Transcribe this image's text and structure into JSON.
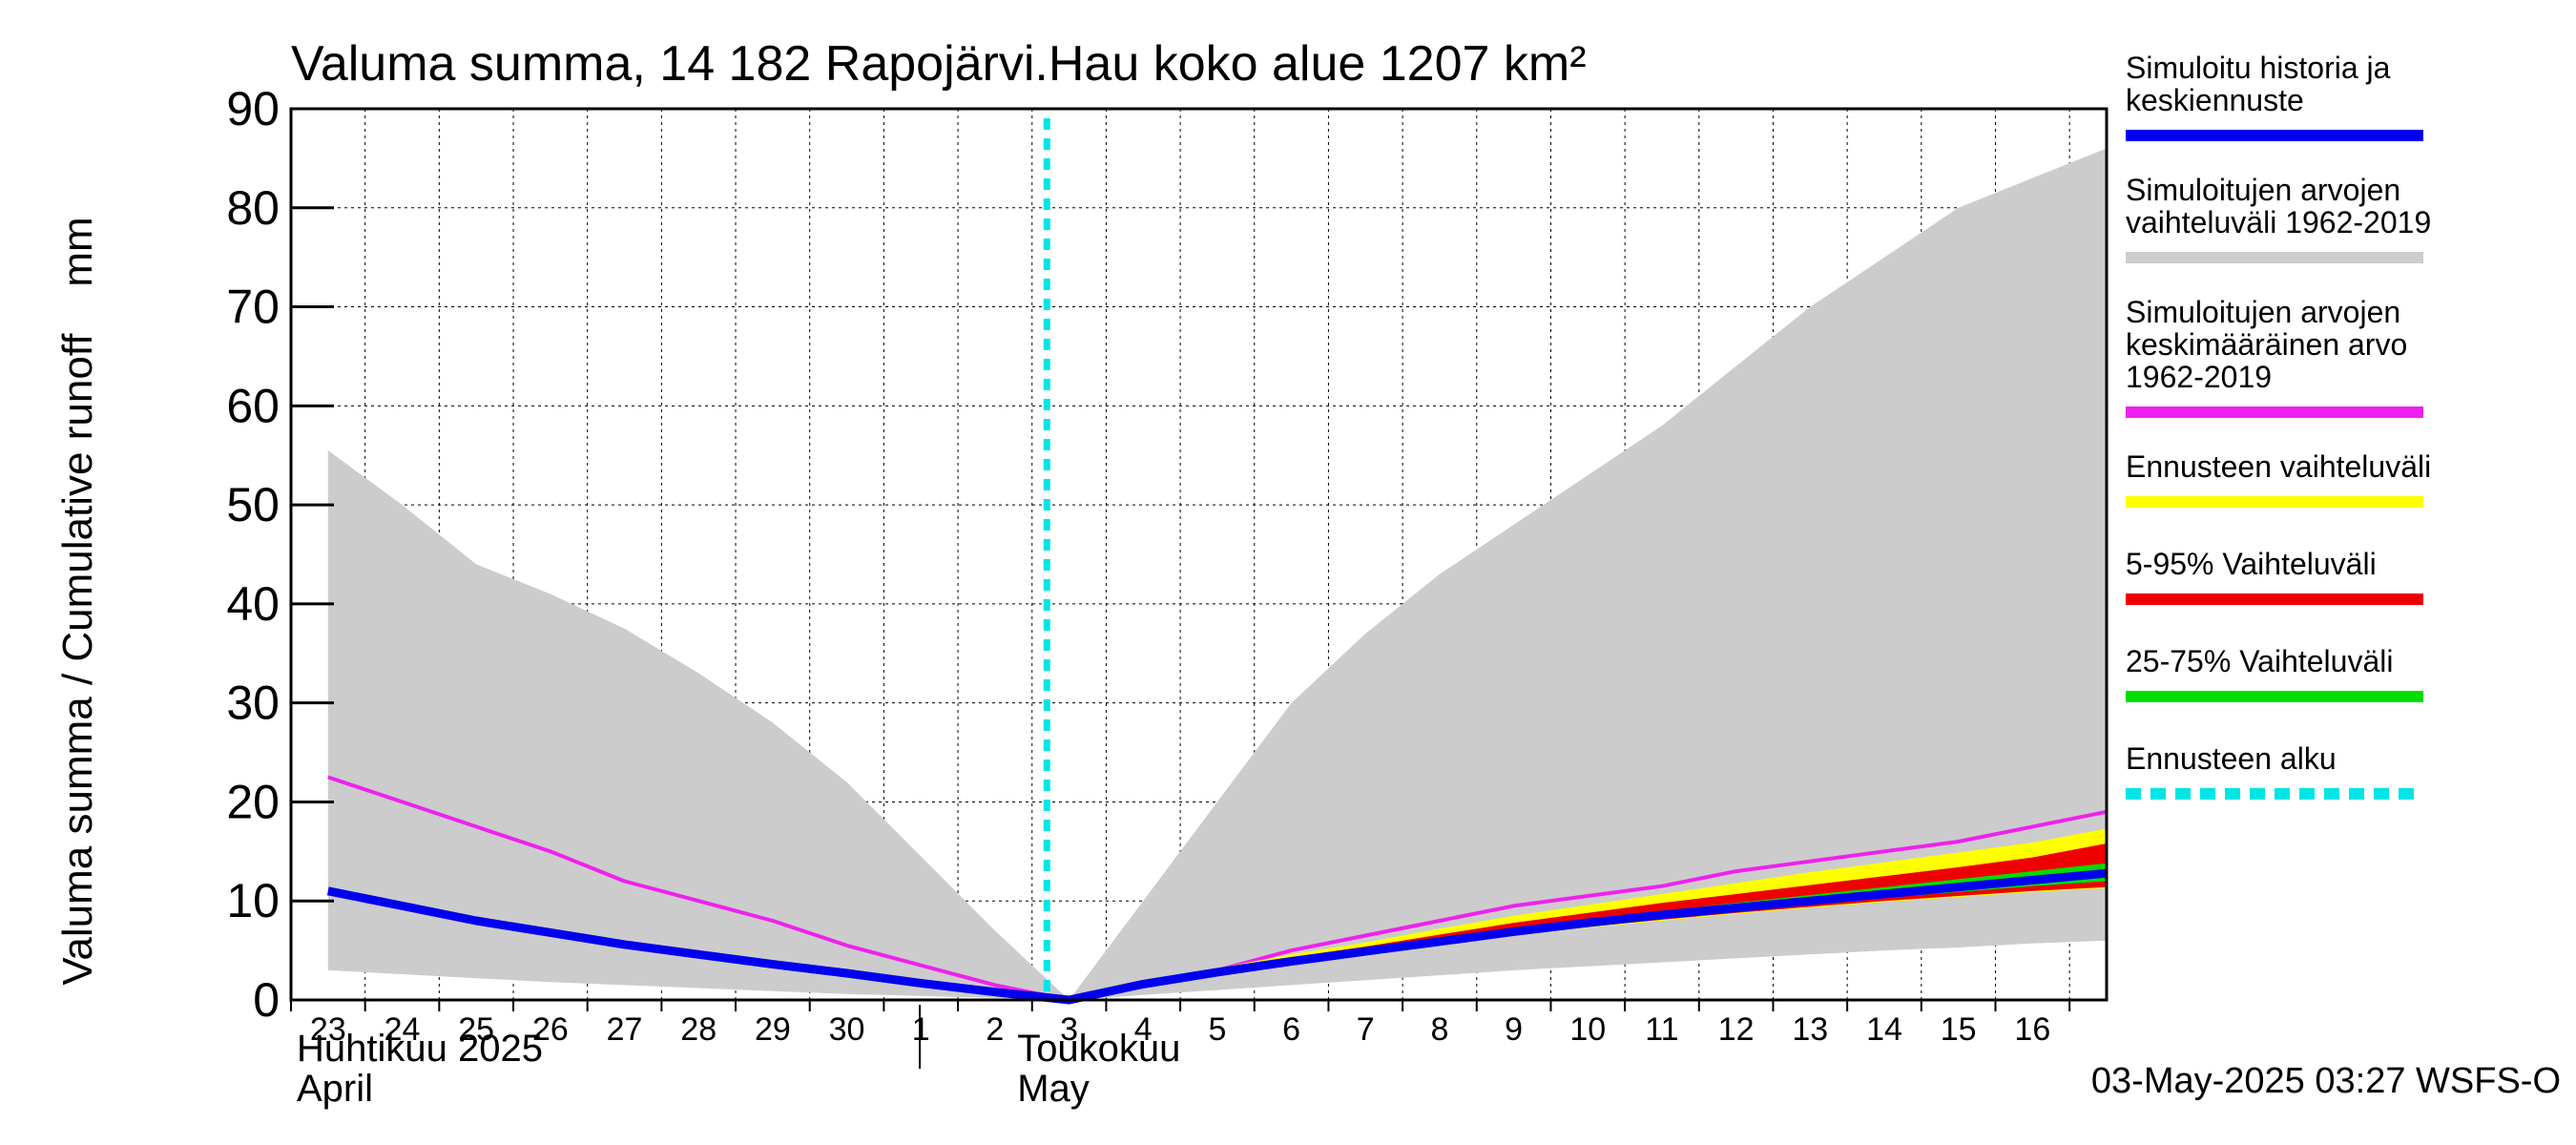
{
  "chart_data": {
    "type": "line",
    "title": "Valuma summa, 14 182 Rapojärvi.Hau koko alue 1207 km²",
    "ylabel": "Valuma summa / Cumulative runoff    mm",
    "ylim": [
      0,
      90
    ],
    "yticks": [
      0,
      10,
      20,
      30,
      40,
      50,
      60,
      70,
      80,
      90
    ],
    "x_days": [
      "23",
      "24",
      "25",
      "26",
      "27",
      "28",
      "29",
      "30",
      "1",
      "2",
      "3",
      "4",
      "5",
      "6",
      "7",
      "8",
      "9",
      "10",
      "11",
      "12",
      "13",
      "14",
      "15",
      "16"
    ],
    "month_labels": [
      {
        "fi": "Huhtikuu  2025",
        "en": "April"
      },
      {
        "fi": "Toukokuu",
        "en": "May"
      }
    ],
    "grid": true,
    "legend_position": "right",
    "forecast_start": "3",
    "legend": [
      {
        "label": "Simuloitu historia ja\nkeskiennuste",
        "color": "#0000ee",
        "style": "solid"
      },
      {
        "label": "Simuloitujen arvojen\nvaihteluväli 1962-2019",
        "color": "#cccccc",
        "style": "solid"
      },
      {
        "label": "Simuloitujen arvojen\nkeskimääräinen arvo\n   1962-2019",
        "color": "#ee22ee",
        "style": "solid"
      },
      {
        "label": "Ennusteen vaihteluväli",
        "color": "#ffff00",
        "style": "solid"
      },
      {
        "label": "5-95% Vaihteluväli",
        "color": "#ee0000",
        "style": "solid"
      },
      {
        "label": "25-75% Vaihteluväli",
        "color": "#00dd00",
        "style": "solid"
      },
      {
        "label": "Ennusteen alku",
        "color": "#00e5e5",
        "style": "dashed"
      }
    ],
    "series": [
      {
        "name": "Simuloitujen arvojen vaihteluväli 1962-2019",
        "kind": "band",
        "x": [
          "23",
          "24",
          "25",
          "26",
          "27",
          "28",
          "29",
          "30",
          "1",
          "2",
          "3",
          "4",
          "5",
          "6",
          "7",
          "8",
          "9",
          "10",
          "11",
          "12",
          "13",
          "14",
          "15",
          "16",
          "17"
        ],
        "upper": [
          55.5,
          50,
          44,
          41,
          37.5,
          33,
          28,
          22,
          14.5,
          7,
          0,
          10,
          20,
          30,
          37,
          43,
          48,
          53,
          58,
          64,
          70,
          75,
          80,
          83,
          86
        ],
        "lower": [
          3,
          2.6,
          2.2,
          1.8,
          1.5,
          1.2,
          0.9,
          0.6,
          0.4,
          0.2,
          0,
          0.5,
          1,
          1.5,
          2,
          2.5,
          3,
          3.4,
          3.8,
          4.2,
          4.6,
          5,
          5.3,
          5.7,
          6
        ]
      },
      {
        "name": "Simuloitujen arvojen keskimääräinen arvo 1962-2019",
        "kind": "line",
        "x": [
          "23",
          "24",
          "25",
          "26",
          "27",
          "28",
          "29",
          "30",
          "1",
          "2",
          "3",
          "4",
          "5",
          "6",
          "7",
          "8",
          "9",
          "10",
          "11",
          "12",
          "13",
          "14",
          "15",
          "16",
          "17"
        ],
        "values": [
          22.5,
          20,
          17.5,
          15,
          12,
          10,
          8,
          5.5,
          3.5,
          1.5,
          0,
          1.5,
          3,
          5,
          6.5,
          8,
          9.5,
          10.5,
          11.5,
          13,
          14,
          15,
          16,
          17.5,
          19
        ]
      },
      {
        "name": "Ennusteen vaihteluväli",
        "kind": "band",
        "x": [
          "3",
          "4",
          "5",
          "6",
          "7",
          "8",
          "9",
          "10",
          "11",
          "12",
          "13",
          "14",
          "15",
          "16",
          "17"
        ],
        "upper": [
          0,
          1.8,
          3.2,
          4.6,
          5.8,
          7.2,
          8.5,
          9.6,
          10.7,
          11.8,
          12.9,
          13.9,
          14.9,
          15.9,
          17.3
        ],
        "lower": [
          0,
          1.5,
          2.5,
          3.5,
          4.6,
          5.6,
          6.5,
          7.3,
          8,
          8.7,
          9.3,
          9.9,
          10.4,
          10.9,
          11.3
        ]
      },
      {
        "name": "5-95% Vaihteluväli",
        "kind": "band",
        "x": [
          "3",
          "4",
          "5",
          "6",
          "7",
          "8",
          "9",
          "10",
          "11",
          "12",
          "13",
          "14",
          "15",
          "16",
          "17"
        ],
        "upper": [
          0,
          1.7,
          3,
          4.3,
          5.4,
          6.6,
          7.8,
          8.8,
          9.8,
          10.7,
          11.6,
          12.5,
          13.4,
          14.4,
          15.8
        ],
        "lower": [
          0,
          1.5,
          2.6,
          3.7,
          4.7,
          5.7,
          6.6,
          7.4,
          8.1,
          8.8,
          9.4,
          10,
          10.5,
          11,
          11.4
        ]
      },
      {
        "name": "25-75% Vaihteluväli",
        "kind": "band",
        "x": [
          "3",
          "4",
          "5",
          "6",
          "7",
          "8",
          "9",
          "10",
          "11",
          "12",
          "13",
          "14",
          "15",
          "16",
          "17"
        ],
        "upper": [
          0,
          1.6,
          2.9,
          4.1,
          5.1,
          6.2,
          7.2,
          8.1,
          9,
          9.8,
          10.6,
          11.4,
          12.2,
          13,
          13.8
        ],
        "lower": [
          0,
          1.5,
          2.7,
          3.8,
          4.8,
          5.8,
          6.7,
          7.5,
          8.3,
          9,
          9.7,
          10.3,
          10.9,
          11.5,
          12
        ]
      },
      {
        "name": "Simuloitu historia ja keskiennuste",
        "kind": "line",
        "x": [
          "23",
          "24",
          "25",
          "26",
          "27",
          "28",
          "29",
          "30",
          "1",
          "2",
          "3",
          "4",
          "5",
          "6",
          "7",
          "8",
          "9",
          "10",
          "11",
          "12",
          "13",
          "14",
          "15",
          "16",
          "17"
        ],
        "values": [
          11,
          9.5,
          8,
          6.8,
          5.6,
          4.6,
          3.6,
          2.7,
          1.7,
          0.8,
          0,
          1.6,
          2.8,
          3.9,
          4.9,
          5.9,
          6.9,
          7.8,
          8.6,
          9.3,
          10,
          10.7,
          11.4,
          12.1,
          12.8
        ]
      }
    ]
  },
  "footer": {
    "timestamp": "03-May-2025 03:27 WSFS-O"
  }
}
